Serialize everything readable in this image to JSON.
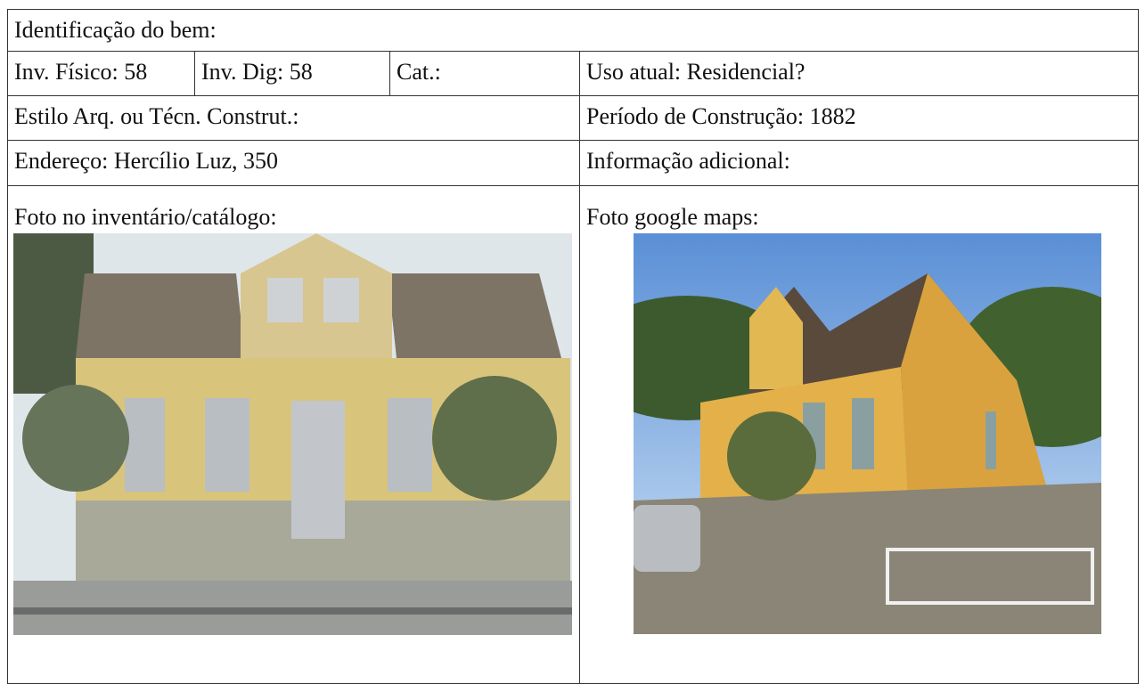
{
  "header": {
    "title": "Identificação do bem:"
  },
  "table": {
    "rows": [
      [
        "Inv. Físico: 58",
        "Inv. Dig: 58",
        "Cat.:",
        "Uso atual: Residencial?"
      ],
      [
        "Estilo Arq. ou Técn. Construt.:",
        "Período de Construção: 1882"
      ],
      [
        "Endereço: Hercílio Luz, 350",
        "Informação adicional:"
      ]
    ]
  },
  "photos": [
    {
      "caption": "Foto no inventário/catálogo:"
    },
    {
      "caption": "Foto google maps:"
    }
  ]
}
